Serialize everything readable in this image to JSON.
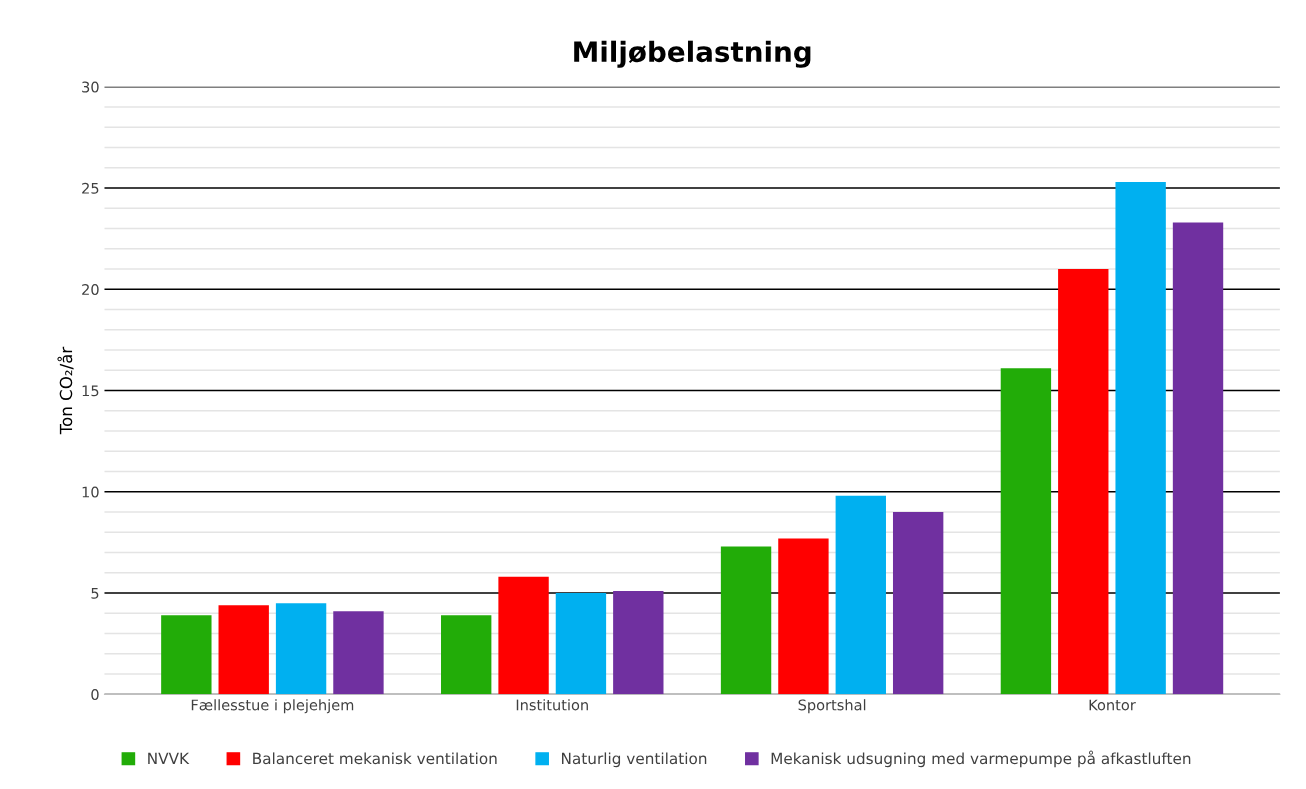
{
  "chart_data": {
    "type": "bar",
    "title": "Miljøbelastning",
    "ylabel": "Ton CO₂/år",
    "categories": [
      "Fællesstue i plejehjem",
      "Institution",
      "Sportshal",
      "Kontor"
    ],
    "series": [
      {
        "name": "NVVK",
        "color": "#22ac08",
        "values": [
          3.9,
          3.9,
          7.3,
          16.1
        ]
      },
      {
        "name": "Balanceret mekanisk ventilation",
        "color": "#ff0000",
        "values": [
          4.4,
          5.8,
          7.7,
          21.0
        ]
      },
      {
        "name": "Naturlig ventilation",
        "color": "#00b0f0",
        "values": [
          4.5,
          5.0,
          9.8,
          25.3
        ]
      },
      {
        "name": "Mekanisk udsugning med varmepumpe på afkastluften",
        "color": "#7030a0",
        "values": [
          4.1,
          5.1,
          9.0,
          23.3
        ]
      }
    ],
    "ylim": [
      0,
      30
    ],
    "yticks": [
      0,
      {
        "value": 1,
        "label": null
      },
      {
        "value": 2,
        "label": null
      },
      {
        "value": 3,
        "label": null
      },
      {
        "value": 4,
        "label": null
      },
      5,
      {
        "value": 6,
        "label": null
      },
      {
        "value": 7,
        "label": null
      },
      {
        "value": 8,
        "label": null
      },
      {
        "value": 9,
        "label": null
      },
      10,
      {
        "value": 11,
        "label": null
      },
      {
        "value": 12,
        "label": null
      },
      {
        "value": 13,
        "label": null
      },
      {
        "value": 14,
        "label": null
      },
      15,
      {
        "value": 16,
        "label": null
      },
      {
        "value": 17,
        "label": null
      },
      {
        "value": 18,
        "label": null
      },
      {
        "value": 19,
        "label": null
      },
      20,
      {
        "value": 21,
        "label": null
      },
      {
        "value": 22,
        "label": null
      },
      {
        "value": 23,
        "label": null
      },
      {
        "value": 24,
        "label": null
      },
      25,
      {
        "value": 26,
        "label": null
      },
      {
        "value": 27,
        "label": null
      },
      {
        "value": 28,
        "label": null
      },
      {
        "value": 29,
        "label": null
      },
      30
    ],
    "grid": "y",
    "legend": "bottom"
  }
}
